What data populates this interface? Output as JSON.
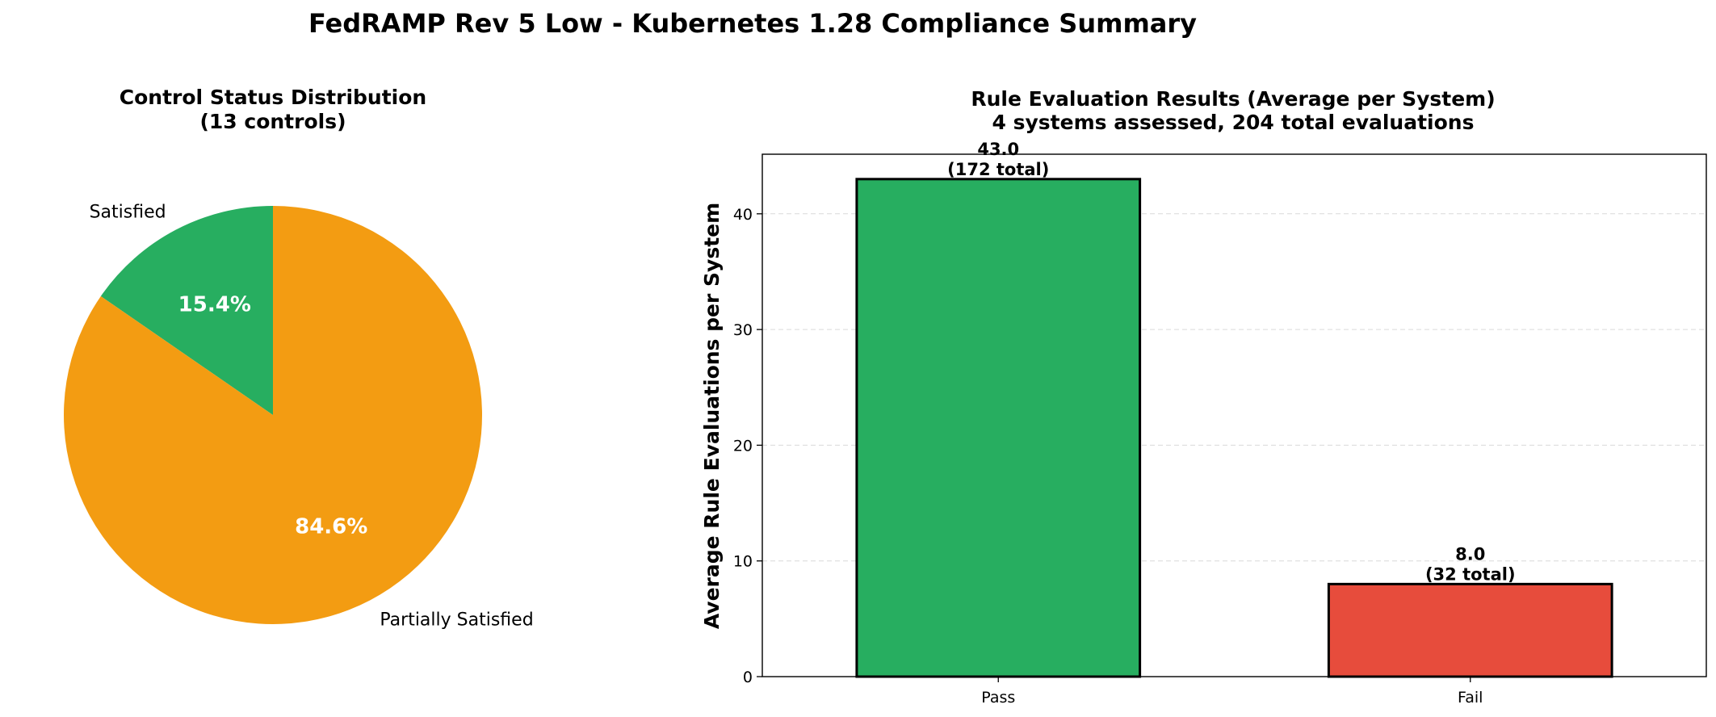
{
  "figure": {
    "title": "FedRAMP Rev 5 Low - Kubernetes 1.28 Compliance Summary"
  },
  "chart_data": [
    {
      "type": "pie",
      "title_lines": [
        "Control Status Distribution",
        "(13 controls)"
      ],
      "labels": [
        "Satisfied",
        "Partially Satisfied"
      ],
      "values": [
        2,
        11
      ],
      "percent_labels": [
        "15.4%",
        "84.6%"
      ],
      "colors": [
        "#27ae60",
        "#f39c12"
      ],
      "start_angle": 90,
      "direction": "counterclockwise"
    },
    {
      "type": "bar",
      "title_lines": [
        "Rule Evaluation Results (Average per System)",
        "4 systems assessed, 204 total evaluations"
      ],
      "categories": [
        "Pass",
        "Fail"
      ],
      "values": [
        43.0,
        8.0
      ],
      "totals": [
        172,
        32
      ],
      "value_labels": [
        [
          "43.0",
          "(172 total)"
        ],
        [
          "8.0",
          "(32 total)"
        ]
      ],
      "colors": [
        "#27ae60",
        "#e74c3c"
      ],
      "ylabel": "Average Rule Evaluations per System",
      "xlabel": "",
      "ylim": [
        0,
        45.15
      ],
      "yticks": [
        0,
        10,
        20,
        30,
        40
      ],
      "grid": "y-dashed"
    }
  ]
}
